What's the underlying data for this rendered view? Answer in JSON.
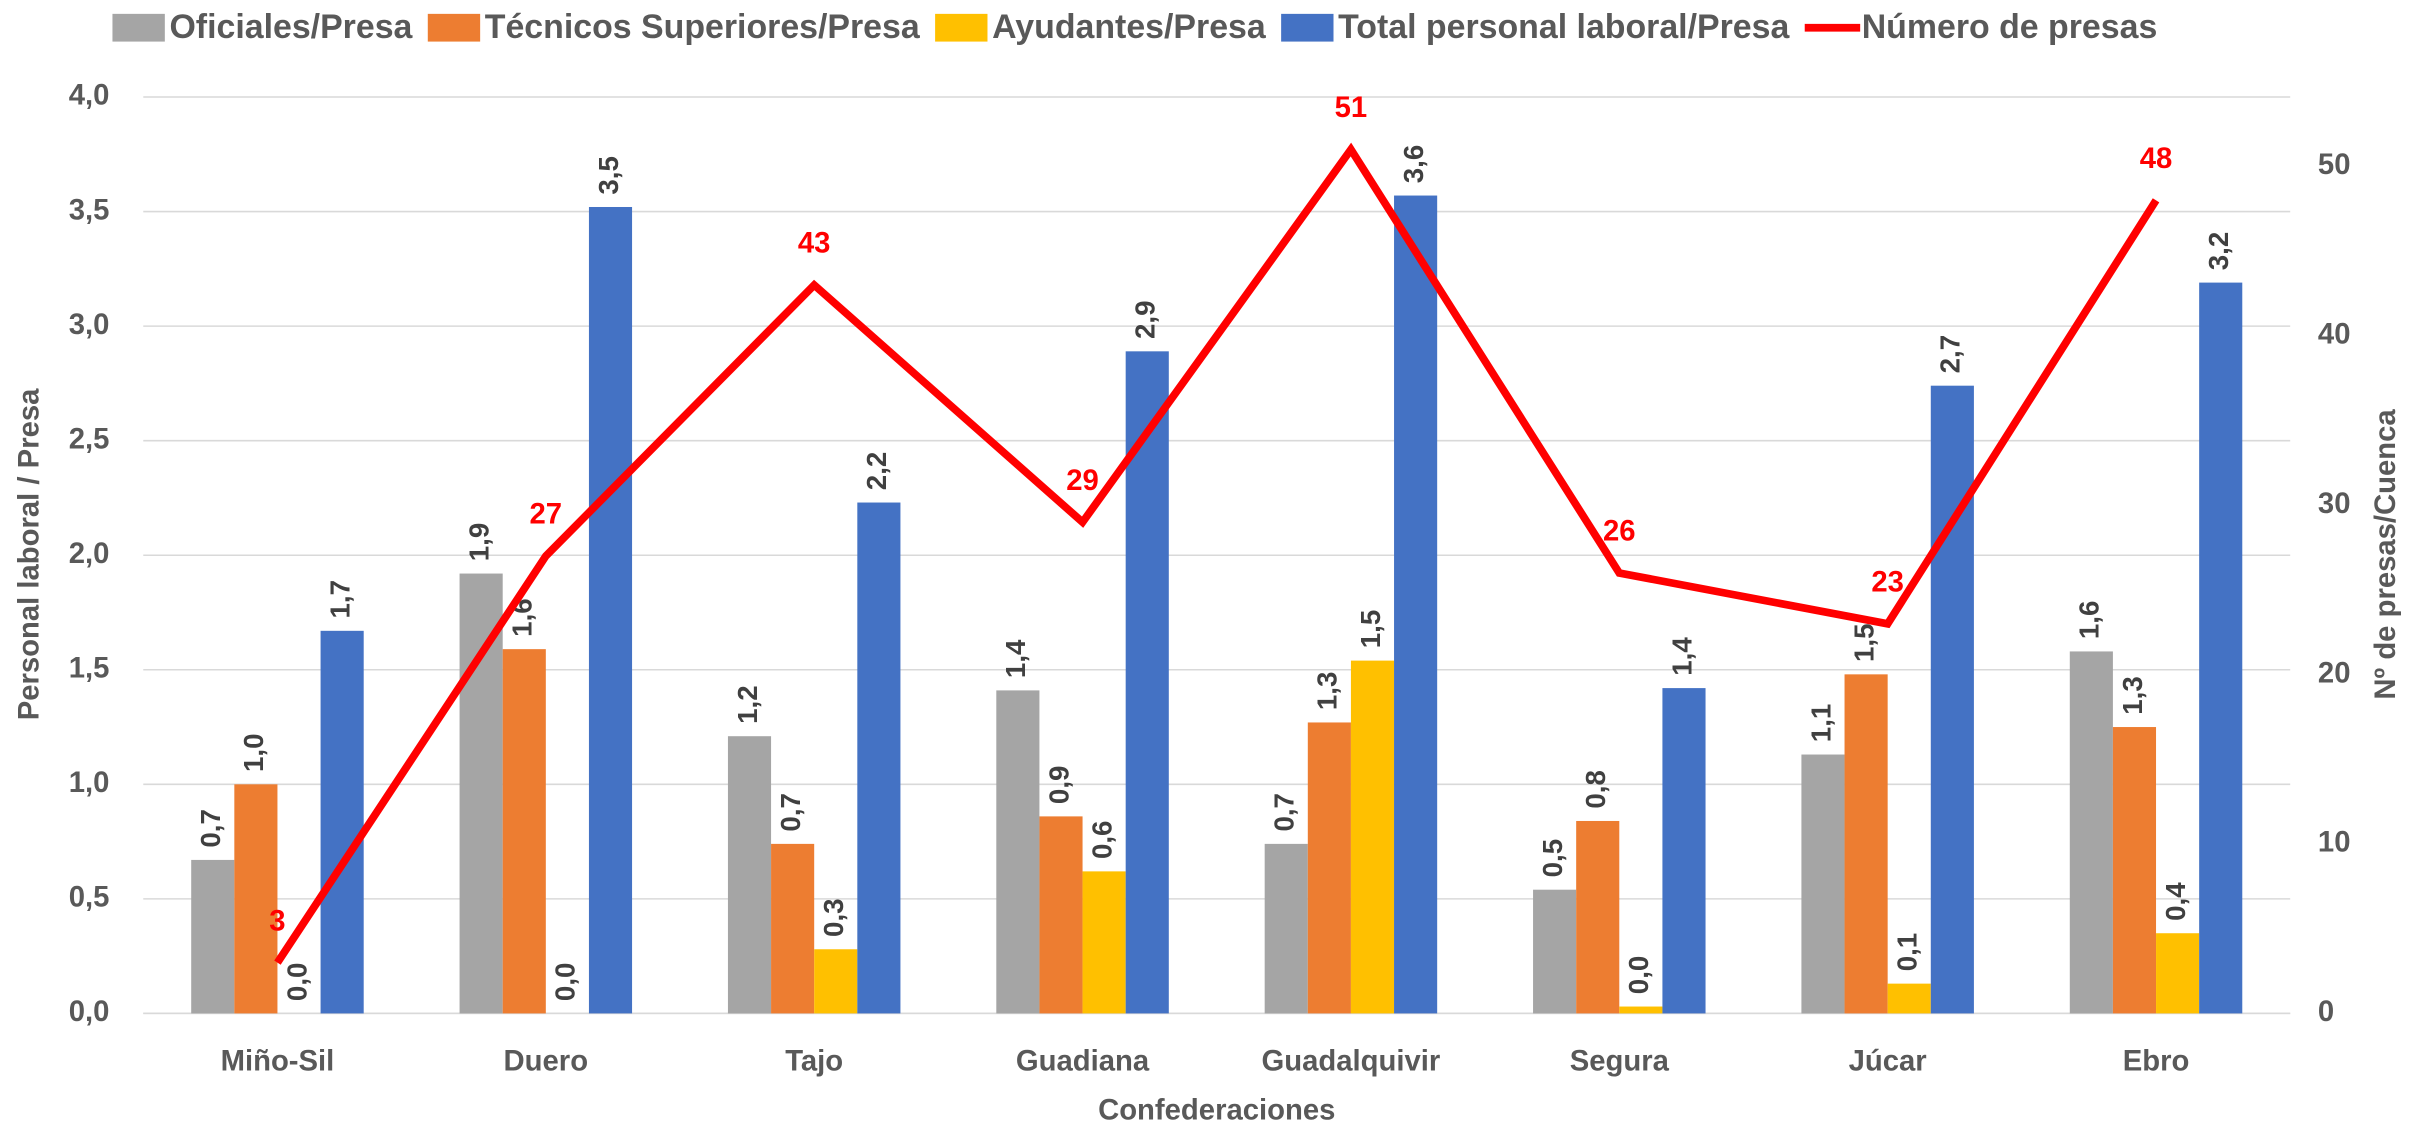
{
  "chart_data": {
    "type": "bar",
    "categories": [
      "Miño-Sil",
      "Duero",
      "Tajo",
      "Guadiana",
      "Guadalquivir",
      "Segura",
      "Júcar",
      "Ebro"
    ],
    "x_label": "Confederaciones",
    "y_label": "Personal laboral / Presa",
    "y2_label": "Nº de presas/Cuenca",
    "ylim": [
      0,
      4
    ],
    "yticks": [
      {
        "value": 0,
        "label": "0,0"
      },
      {
        "value": 0.5,
        "label": "0,5"
      },
      {
        "value": 1,
        "label": "1,0"
      },
      {
        "value": 1.5,
        "label": "1,5"
      },
      {
        "value": 2,
        "label": "2,0"
      },
      {
        "value": 2.5,
        "label": "2,5"
      },
      {
        "value": 3,
        "label": "3,0"
      },
      {
        "value": 3.5,
        "label": "3,5"
      },
      {
        "value": 4,
        "label": "4,0"
      }
    ],
    "y2lim": [
      0,
      54.1
    ],
    "y2ticks": [
      0,
      10,
      20,
      30,
      40,
      50
    ],
    "grid": true,
    "legend": "top",
    "series": [
      {
        "name": "Oficiales/Presa",
        "color": "#a5a5a5",
        "values": [
          0.67,
          1.92,
          1.21,
          1.41,
          0.74,
          0.54,
          1.13,
          1.58
        ],
        "value_labels": [
          "0,7",
          "1,9",
          "1,2",
          "1,4",
          "0,7",
          "0,5",
          "1,1",
          "1,6"
        ]
      },
      {
        "name": "Técnicos Superiores/Presa",
        "color": "#ed7d31",
        "values": [
          1.0,
          1.59,
          0.74,
          0.86,
          1.27,
          0.84,
          1.48,
          1.25
        ],
        "value_labels": [
          "1,0",
          "1,6",
          "0,7",
          "0,9",
          "1,3",
          "0,8",
          "1,5",
          "1,3"
        ]
      },
      {
        "name": "Ayudantes/Presa",
        "color": "#ffc000",
        "values": [
          0.0,
          0.0,
          0.28,
          0.62,
          1.54,
          0.03,
          0.13,
          0.35
        ],
        "value_labels": [
          "0,0",
          "0,0",
          "0,3",
          "0,6",
          "1,5",
          "0,0",
          "0,1",
          "0,4"
        ]
      },
      {
        "name": "Total personal laboral/Presa",
        "color": "#4472c4",
        "values": [
          1.67,
          3.52,
          2.23,
          2.89,
          3.57,
          1.42,
          2.74,
          3.19
        ],
        "value_labels": [
          "1,7",
          "3,5",
          "2,2",
          "2,9",
          "3,6",
          "1,4",
          "2,7",
          "3,2"
        ]
      },
      {
        "name": "Número de presas",
        "color": "#ff0000",
        "type": "line",
        "axis": "y2",
        "values": [
          3,
          27,
          43,
          29,
          51,
          26,
          23,
          48
        ]
      }
    ]
  }
}
